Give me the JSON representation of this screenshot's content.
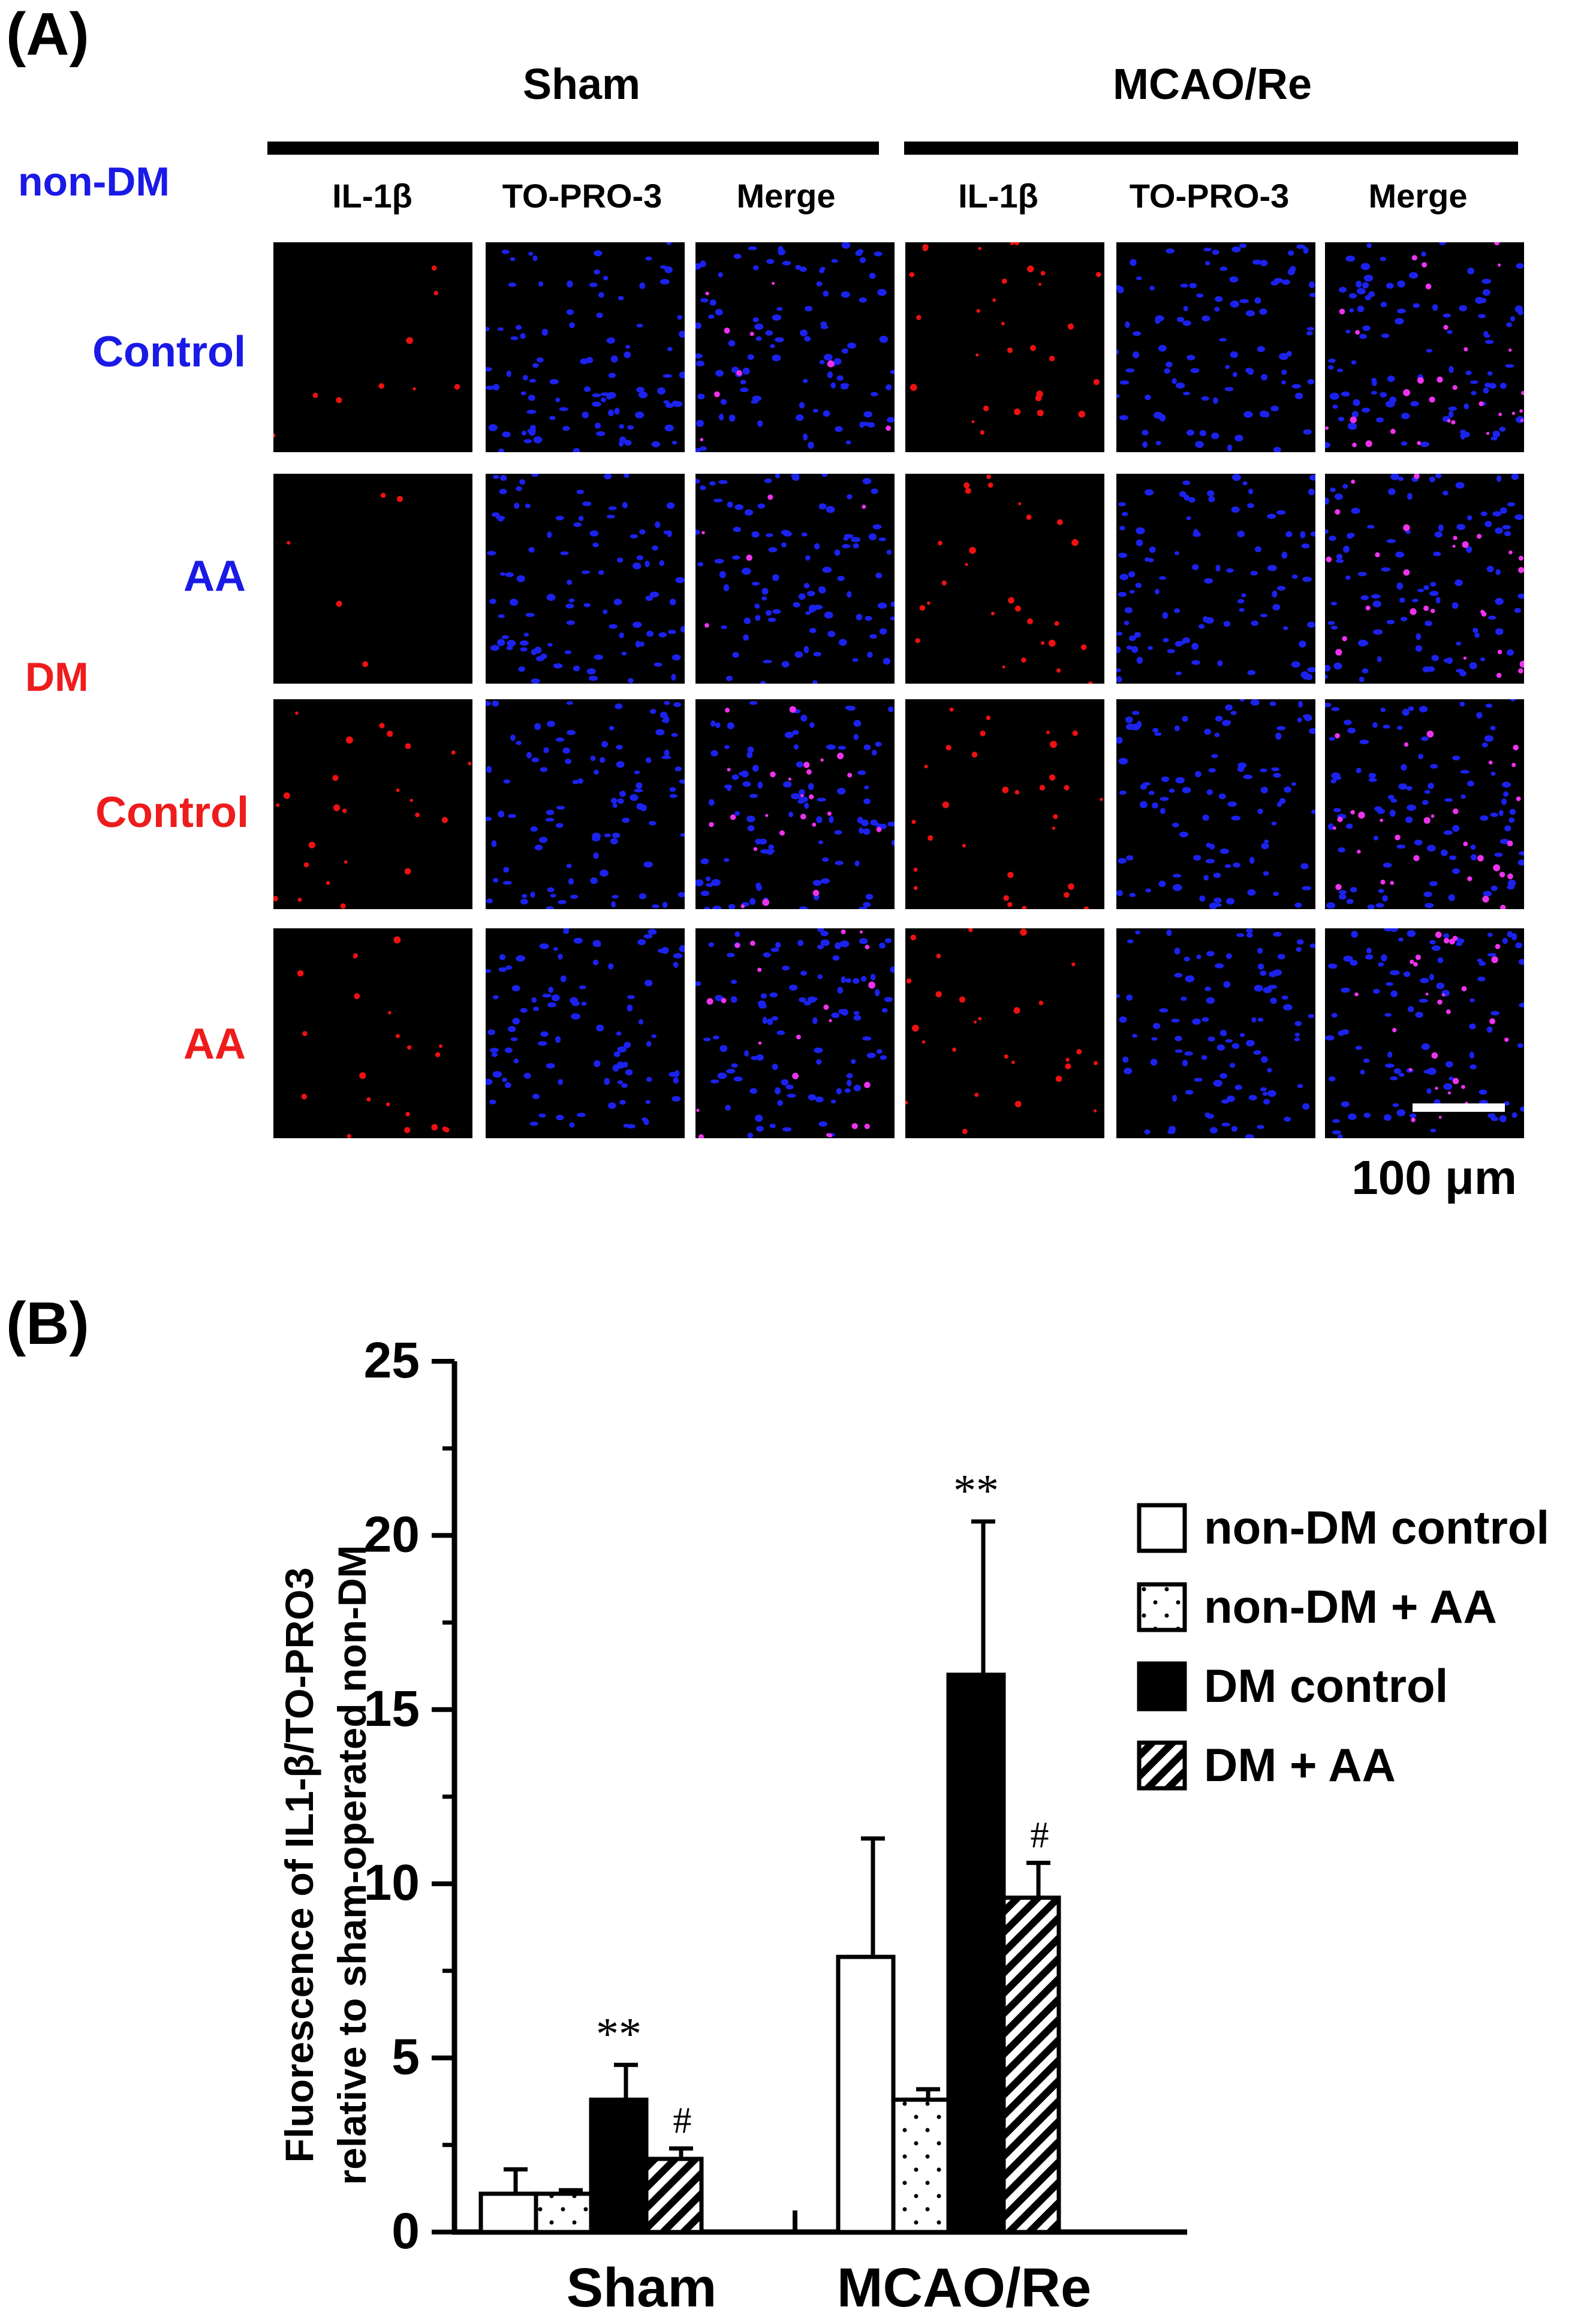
{
  "panel_a": {
    "label": "(A)",
    "groups": [
      "Sham",
      "MCAO/Re"
    ],
    "columns": [
      "IL-1β",
      "TO-PRO-3",
      "Merge",
      "IL-1β",
      "TO-PRO-3",
      "Merge"
    ],
    "condition_labels": [
      {
        "text": "non-DM",
        "color": "#1a1ae6"
      },
      {
        "text": "DM",
        "color": "#ee1c1c"
      }
    ],
    "rows": [
      {
        "label": "Control",
        "color": "#1a1ae6",
        "red_intensity": [
          0.15,
          0,
          0.15,
          0.5,
          0,
          0.5
        ]
      },
      {
        "label": "AA",
        "color": "#1a1ae6",
        "red_intensity": [
          0.08,
          0,
          0.08,
          0.45,
          0,
          0.45
        ]
      },
      {
        "label": "Control",
        "color": "#ee1c1c",
        "red_intensity": [
          0.4,
          0,
          0.4,
          0.5,
          0,
          0.5
        ]
      },
      {
        "label": "AA",
        "color": "#ee1c1c",
        "red_intensity": [
          0.35,
          0,
          0.35,
          0.45,
          0,
          0.45
        ]
      }
    ],
    "scale_bar_label": "100 μm"
  },
  "panel_b": {
    "label": "(B)"
  },
  "chart_data": {
    "type": "bar",
    "categories": [
      "Sham",
      "MCAO/Re"
    ],
    "ylabel_line1": "Fluorescence of IL1-β/TO-PRO3",
    "ylabel_line2": "relative to sham-operated non-DM",
    "ylim": [
      0,
      25
    ],
    "yticks": [
      "0",
      "5",
      "10",
      "15",
      "20",
      "25"
    ],
    "series": [
      {
        "name": "non-DM control",
        "pattern": "white",
        "values": [
          1.1,
          7.9
        ],
        "errors": [
          0.7,
          3.4
        ],
        "marks": [
          "",
          ""
        ]
      },
      {
        "name": "non-DM + AA",
        "pattern": "dots",
        "values": [
          1.1,
          3.8
        ],
        "errors": [
          0.1,
          0.3
        ],
        "marks": [
          "",
          ""
        ]
      },
      {
        "name": "DM control",
        "pattern": "black",
        "values": [
          3.8,
          16.0
        ],
        "errors": [
          1.0,
          4.4
        ],
        "marks": [
          "**",
          "**"
        ]
      },
      {
        "name": "DM + AA",
        "pattern": "hatch",
        "values": [
          2.1,
          9.6
        ],
        "errors": [
          0.3,
          1.0
        ],
        "marks": [
          "#",
          "#"
        ]
      }
    ]
  }
}
